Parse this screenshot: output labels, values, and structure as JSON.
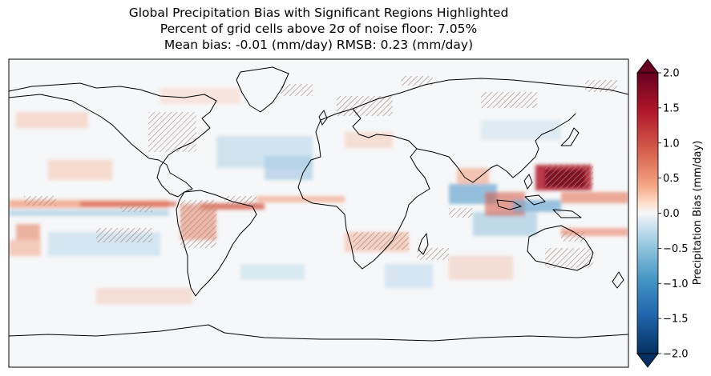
{
  "title": {
    "line1": "Global Precipitation Bias with Significant Regions Highlighted",
    "line2": "Percent of grid cells above 2σ of noise floor: 7.05%",
    "line3": "Mean bias: -0.01 (mm/day)  RMSB: 0.23 (mm/day)"
  },
  "map": {
    "projection": "PlateCarree",
    "extent_lon": [
      -180,
      180
    ],
    "extent_lat": [
      -90,
      90
    ],
    "significance_hatch_color": "#a58a7e",
    "coastline_color": "#000000"
  },
  "colorbar": {
    "label": "Precipitation Bias (mm/day)",
    "colormap": "RdBu_r",
    "range": [
      -2.0,
      2.0
    ],
    "extend": "both",
    "ticks": [
      2.0,
      1.5,
      1.0,
      0.5,
      0.0,
      -0.5,
      -1.0,
      -1.5,
      -2.0
    ],
    "tick_labels": [
      "2.0",
      "1.5",
      "1.0",
      "0.5",
      "0.0",
      "−0.5",
      "−1.0",
      "−1.5",
      "−2.0"
    ],
    "colors": {
      "max": "#67001f",
      "high": "#b2182b",
      "mid_high": "#f4a582",
      "zero": "#f7f7f7",
      "mid_low": "#92c5de",
      "low": "#2166ac",
      "min": "#053061"
    }
  },
  "chart_data": {
    "type": "heatmap",
    "variable": "Precipitation Bias",
    "units": "mm/day",
    "clim": [
      -2.0,
      2.0
    ],
    "statistics": {
      "percent_above_2sigma": 7.05,
      "mean_bias": -0.01,
      "rmsb": 0.23
    },
    "notable_regions": [
      {
        "lon": 130,
        "lat": 15,
        "bias": 1.8
      },
      {
        "lon": 120,
        "lat": 0,
        "bias": -1.0
      },
      {
        "lon": 140,
        "lat": 0,
        "bias": -0.6
      },
      {
        "lon": 100,
        "lat": 5,
        "bias": 0.8
      },
      {
        "lon": -160,
        "lat": 5,
        "bias": 0.7
      },
      {
        "lon": -90,
        "lat": 5,
        "bias": 0.9
      },
      {
        "lon": -60,
        "lat": -5,
        "bias": 1.0
      },
      {
        "lon": -35,
        "lat": 25,
        "bias": -0.6
      },
      {
        "lon": -100,
        "lat": -25,
        "bias": -0.6
      },
      {
        "lon": 70,
        "lat": 0,
        "bias": -0.8
      },
      {
        "lon": 60,
        "lat": -20,
        "bias": 0.5
      },
      {
        "lon": 25,
        "lat": 5,
        "bias": 0.4
      },
      {
        "lon": 160,
        "lat": -20,
        "bias": 0.6
      },
      {
        "lon": -20,
        "lat": 0,
        "bias": 0.3
      }
    ]
  }
}
